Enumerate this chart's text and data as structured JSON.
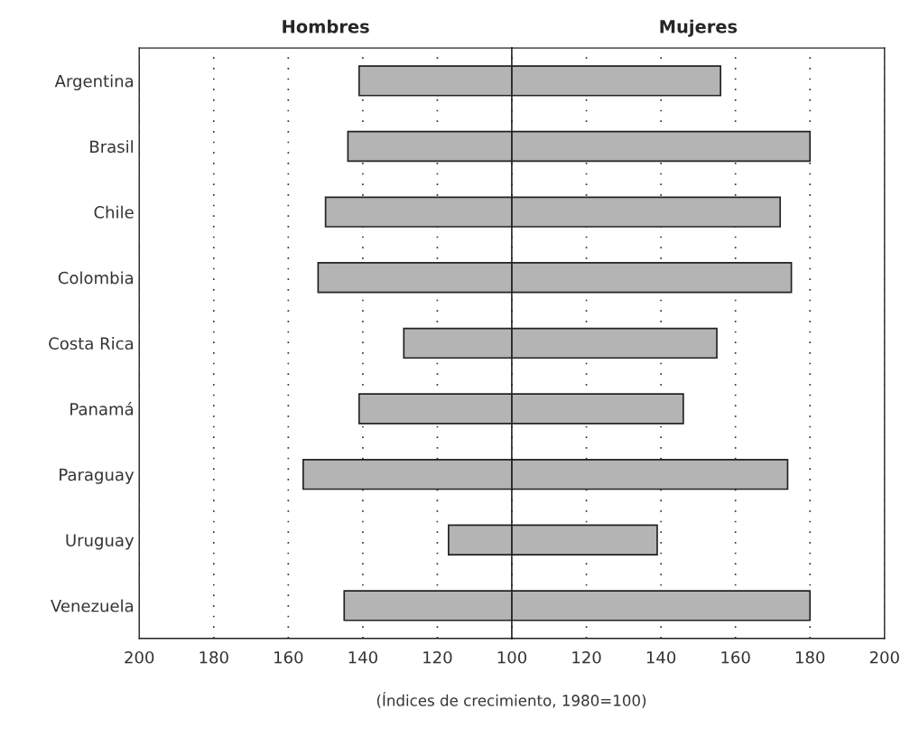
{
  "chart_data": [
    {
      "type": "bar",
      "orientation": "horizontal",
      "title": "Hombres",
      "xlabel": "(Índices de crecimiento, 1980=100)",
      "categories": [
        "Argentina",
        "Brasil",
        "Chile",
        "Colombia",
        "Costa Rica",
        "Panamá",
        "Paraguay",
        "Uruguay",
        "Venezuela"
      ],
      "base": [
        100,
        100,
        100,
        100,
        100,
        100,
        100,
        100,
        100
      ],
      "values": [
        41,
        44,
        50,
        52,
        29,
        41,
        56,
        17,
        45
      ],
      "color": "#b4b4b4",
      "xlim": [
        200,
        100
      ],
      "xticks": [
        200,
        180,
        160,
        140,
        120,
        100
      ],
      "grid": "x"
    },
    {
      "type": "bar",
      "orientation": "horizontal",
      "title": "Mujeres",
      "categories": [
        null,
        null,
        null,
        null,
        null,
        null,
        null,
        null,
        null
      ],
      "base": [
        100,
        100,
        100,
        100,
        100,
        100,
        100,
        100,
        100
      ],
      "values": [
        56,
        80,
        72,
        75,
        55,
        46,
        74,
        39,
        80
      ],
      "color": "#b4b4b4",
      "xlim": [
        100,
        200
      ],
      "xticks": [
        {
          "value": 100,
          "label": null
        },
        120,
        140,
        160,
        180,
        200
      ],
      "grid": "x",
      "tick_labels": "x"
    }
  ]
}
